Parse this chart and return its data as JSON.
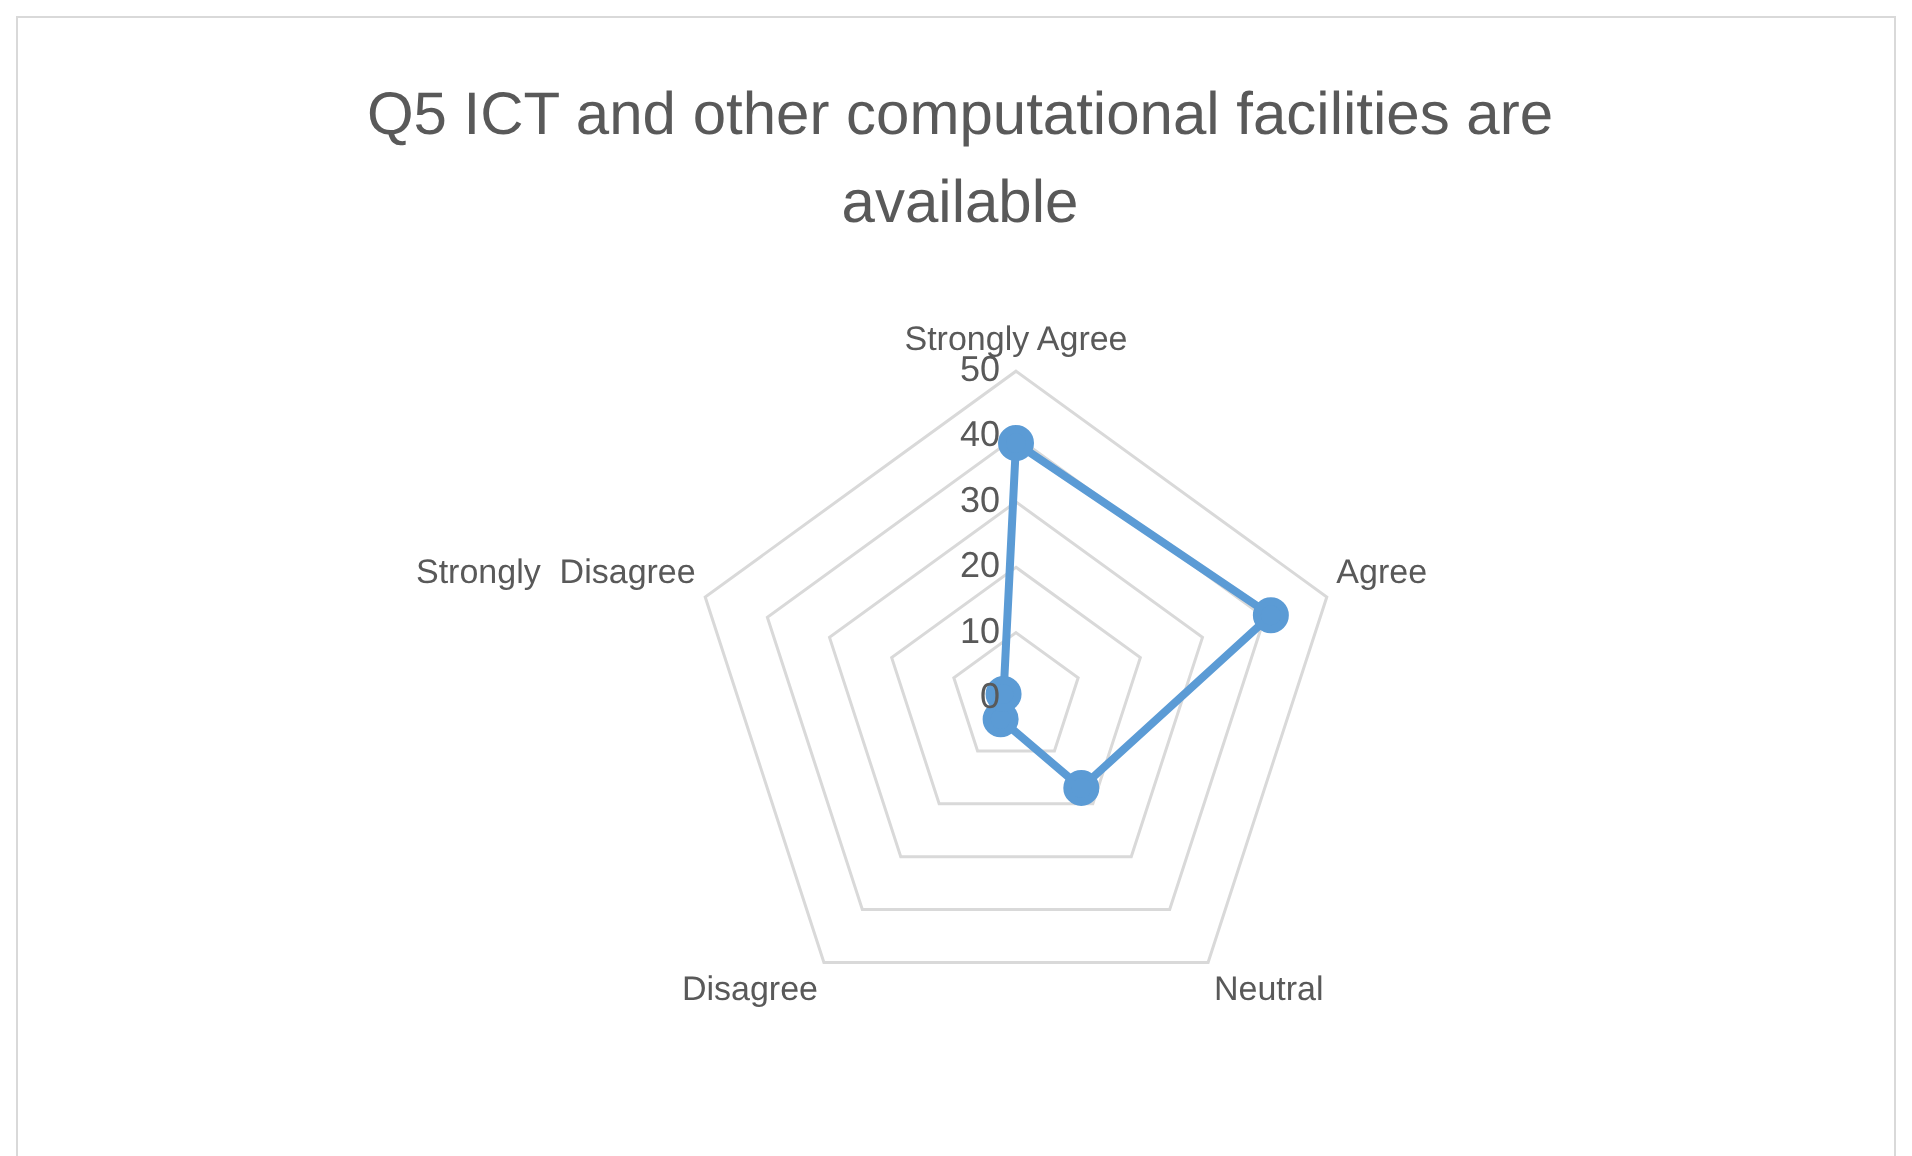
{
  "chart_data": {
    "type": "radar",
    "title": "Q5 ICT and other computational facilities are available",
    "categories": [
      "Strongly Agree",
      "Agree",
      "Neutral",
      "Disagree",
      "Strongly  Disagree"
    ],
    "series": [
      {
        "color": "#5b9bd5",
        "values": [
          39,
          41,
          17,
          4,
          2
        ]
      }
    ],
    "ylim": [
      0,
      50
    ],
    "yticks": [
      0,
      10,
      20,
      30,
      40,
      50
    ],
    "grid": true,
    "legend": false,
    "marker": "circle",
    "line_style": "solid"
  }
}
